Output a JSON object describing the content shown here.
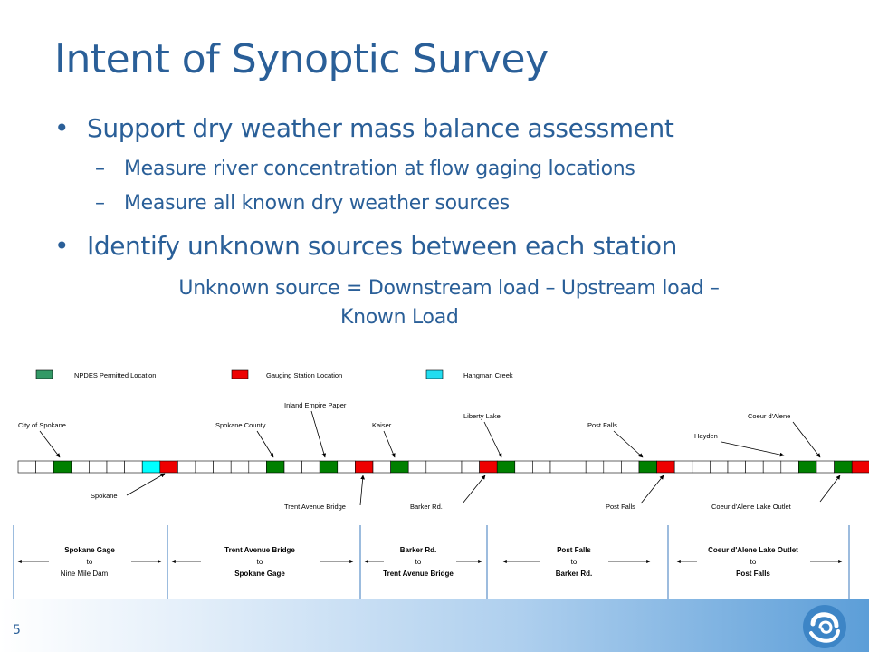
{
  "slide": {
    "title": "Intent of Synoptic Survey",
    "bullets": [
      {
        "text": "Support  dry weather mass balance assessment",
        "subs": [
          "Measure river concentration at flow gaging locations",
          "Measure all known dry weather sources"
        ]
      },
      {
        "text": "Identify unknown sources between each station",
        "subs": []
      }
    ],
    "formula_line1": "Unknown source = Downstream load – Upstream load –",
    "formula_line2": "Known Load",
    "page_number": "5"
  },
  "legend": [
    {
      "label": "NPDES Permitted Location",
      "color": "#339966"
    },
    {
      "label": "Gauging Station Location",
      "color": "#ee0000"
    },
    {
      "label": "Hangman Creek",
      "color": "#22ddf0"
    }
  ],
  "colors": {
    "npdes_cell": "#008000",
    "gauge_cell": "#ee0000",
    "hangman_cell": "#00ffff",
    "text_blue": "#2a5f98"
  },
  "strip": {
    "cell_count": 48,
    "npdes_cells": [
      2,
      14,
      17,
      21,
      27,
      35,
      44,
      46
    ],
    "gauge_cells": [
      8,
      19,
      26,
      36,
      47
    ],
    "hangman_cells": [
      7
    ]
  },
  "top_labels": [
    {
      "name": "City of Spokane"
    },
    {
      "name": "Spokane County"
    },
    {
      "name": "Inland Empire Paper"
    },
    {
      "name": "Kaiser"
    },
    {
      "name": "Liberty Lake"
    },
    {
      "name": "Post Falls"
    },
    {
      "name": "Hayden"
    },
    {
      "name": "Coeur d'Alene"
    }
  ],
  "bottom_labels": [
    {
      "name": "Spokane"
    },
    {
      "name": "Trent Avenue Bridge"
    },
    {
      "name": "Barker Rd."
    },
    {
      "name": "Post Falls"
    },
    {
      "name": "Coeur d'Alene Lake Outlet"
    }
  ],
  "reaches": [
    {
      "from": "Spokane Gage",
      "to_word": "to",
      "to": "Nine Mile Dam",
      "to_bold": false
    },
    {
      "from": "Trent Avenue Bridge",
      "to_word": "to",
      "to": "Spokane Gage",
      "to_bold": true
    },
    {
      "from": "Barker Rd.",
      "to_word": "to",
      "to": "Trent Avenue Bridge",
      "to_bold": true
    },
    {
      "from": "Post Falls",
      "to_word": "to",
      "to": "Barker Rd.",
      "to_bold": true
    },
    {
      "from": "Coeur d'Alene Lake Outlet",
      "to_word": "to",
      "to": "Post Falls",
      "to_bold": true
    }
  ]
}
